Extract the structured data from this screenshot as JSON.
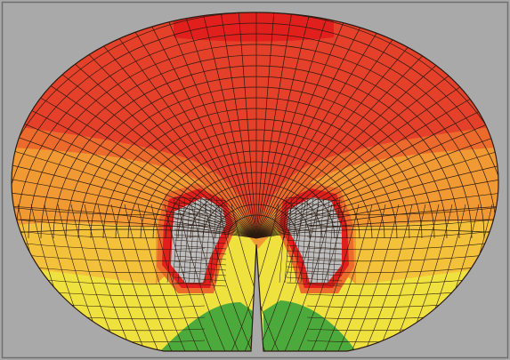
{
  "figure": {
    "description_free": true,
    "colors": {
      "background": "#a9a9a9",
      "border": "#6f6f6f",
      "mesh": "#2a1a10",
      "red_dark": "#e11f1d",
      "red": "#e5402a",
      "orange_red": "#ec6a2c",
      "orange": "#f19a33",
      "yellow_orange": "#f3c23a",
      "yellow": "#efe23e",
      "green": "#4caa3c",
      "gray_patch": "#bdbdbd"
    },
    "zones": [
      {
        "id": "top-red",
        "color_key": "red"
      },
      {
        "id": "upper-orange",
        "color_key": "orange_red"
      },
      {
        "id": "mid-orange",
        "color_key": "orange"
      },
      {
        "id": "lower-yellow",
        "color_key": "yellow"
      },
      {
        "id": "bottom-green",
        "color_key": "green"
      },
      {
        "id": "gray-patch",
        "color_key": "gray_patch"
      }
    ]
  }
}
